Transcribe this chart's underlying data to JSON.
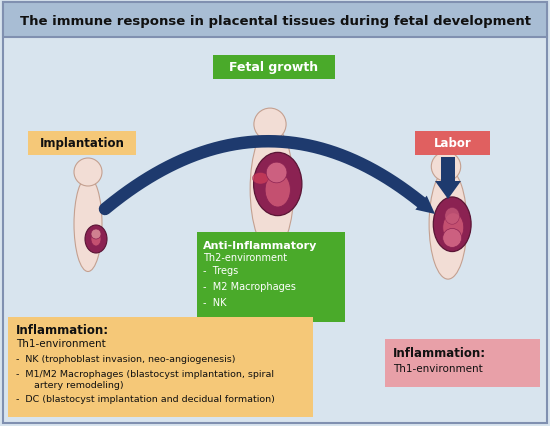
{
  "title": "The immune response in placental tissues during fetal development",
  "title_bg": "#a8bdd4",
  "main_bg": "#d8e4ee",
  "border_color": "#8090b0",
  "fetal_growth_label": "Fetal growth",
  "fetal_growth_bg": "#4aaa2a",
  "implantation_label": "Implantation",
  "implantation_bg": "#f5c878",
  "labor_label": "Labor",
  "labor_bg": "#e06060",
  "anti_inflam_title": "Anti-Inflammatory",
  "anti_inflam_sub": "Th2-environment",
  "anti_inflam_items": [
    "Tregs",
    "M2 Macrophages",
    "NK"
  ],
  "anti_inflam_bg": "#4aaa2a",
  "inflam_left_title": "Inflammation:",
  "inflam_left_sub": "Th1-environment",
  "inflam_left_item1": "NK (trophoblast invasion, neo-angiogenesis)",
  "inflam_left_item2a": "M1/M2 Macrophages (blastocyst implantation, spiral",
  "inflam_left_item2b": "  artery remodeling)",
  "inflam_left_item3": "DC (blastocyst implantation and decidual formation)",
  "inflam_left_bg": "#f5c878",
  "inflam_right_title": "Inflammation:",
  "inflam_right_sub": "Th1-environment",
  "inflam_right_bg": "#e8a0a8",
  "arrow_color": "#1e3a6e",
  "body_skin": "#f2ddd5",
  "body_outline": "#c4a090",
  "uterus_color": "#8b2252",
  "uterus_outline": "#5a1535",
  "fetus_color": "#c45070",
  "fetus_outline": "#8b2252"
}
